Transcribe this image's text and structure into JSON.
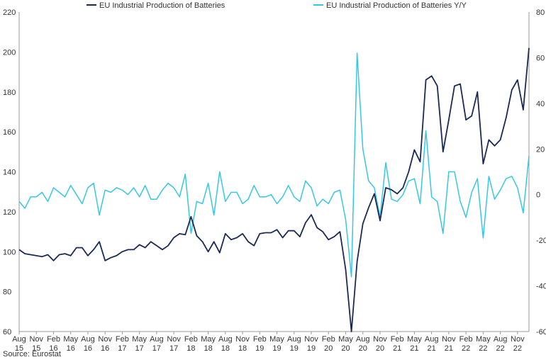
{
  "chart_data": {
    "type": "line",
    "source": "Source: Eurostat",
    "colors": {
      "index": "#1b2a55",
      "yoy": "#35c8e6",
      "axis": "#999999"
    },
    "left_axis": {
      "ylim": [
        60,
        220
      ],
      "ticks": [
        "60",
        "80",
        "100",
        "120",
        "140",
        "160",
        "180",
        "200",
        "220"
      ]
    },
    "right_axis": {
      "ylim": [
        -60,
        80
      ],
      "ticks": [
        "-60",
        "-40",
        "-20",
        "0",
        "20",
        "40",
        "60",
        "80"
      ]
    },
    "x_start": "2015-08",
    "x_ticks": [
      {
        "month": "Aug",
        "year": "15"
      },
      {
        "month": "Nov",
        "year": "15"
      },
      {
        "month": "Feb",
        "year": "16"
      },
      {
        "month": "May",
        "year": "16"
      },
      {
        "month": "Aug",
        "year": "16"
      },
      {
        "month": "Nov",
        "year": "16"
      },
      {
        "month": "Feb",
        "year": "17"
      },
      {
        "month": "May",
        "year": "17"
      },
      {
        "month": "Aug",
        "year": "17"
      },
      {
        "month": "Nov",
        "year": "17"
      },
      {
        "month": "Feb",
        "year": "18"
      },
      {
        "month": "May",
        "year": "18"
      },
      {
        "month": "Aug",
        "year": "18"
      },
      {
        "month": "Nov",
        "year": "18"
      },
      {
        "month": "Feb",
        "year": "19"
      },
      {
        "month": "May",
        "year": "19"
      },
      {
        "month": "Aug",
        "year": "19"
      },
      {
        "month": "Nov",
        "year": "19"
      },
      {
        "month": "Feb",
        "year": "20"
      },
      {
        "month": "May",
        "year": "20"
      },
      {
        "month": "Aug",
        "year": "20"
      },
      {
        "month": "Nov",
        "year": "20"
      },
      {
        "month": "Feb",
        "year": "21"
      },
      {
        "month": "May",
        "year": "21"
      },
      {
        "month": "Aug",
        "year": "21"
      },
      {
        "month": "Nov",
        "year": "21"
      },
      {
        "month": "Feb",
        "year": "22"
      },
      {
        "month": "May",
        "year": "22"
      },
      {
        "month": "Aug",
        "year": "22"
      },
      {
        "month": "Nov",
        "year": "22"
      }
    ],
    "series": [
      {
        "name": "EU Industrial Production of Batteries",
        "axis": "left",
        "values": [
          101,
          99,
          98.5,
          98,
          97.5,
          98.5,
          95.5,
          98.5,
          99,
          98,
          102,
          102,
          98,
          101,
          105,
          95.5,
          97,
          98,
          100,
          101,
          101,
          103.5,
          102,
          105,
          103,
          101,
          103,
          107,
          109,
          108.5,
          117.5,
          108,
          105,
          100,
          105,
          99.5,
          109,
          106,
          107,
          109,
          105,
          103,
          109,
          109.5,
          109.5,
          111,
          107,
          110.5,
          110.5,
          107.5,
          114.5,
          118.5,
          112,
          110,
          106,
          107.5,
          110,
          91,
          60,
          95,
          114,
          122,
          129,
          115.5,
          132,
          131,
          129,
          132,
          140,
          151,
          145,
          186,
          188,
          183,
          150,
          166,
          183,
          184,
          166,
          168,
          180,
          144,
          156,
          153,
          156,
          167,
          181,
          186,
          171,
          202
        ]
      },
      {
        "name": "EU Industrial Production of Batteries Y/Y",
        "axis": "right",
        "values": [
          -3,
          -6,
          -1,
          -1,
          1,
          -3,
          3,
          1,
          -1,
          4,
          0,
          -4,
          3,
          5,
          -9,
          2,
          1,
          3,
          2,
          0,
          3,
          -1,
          4,
          -2,
          -2,
          2,
          5,
          3,
          -1,
          9,
          -17,
          -3,
          -4,
          5,
          -9,
          10,
          -3,
          1,
          1,
          -4,
          -2,
          4,
          -1,
          -1,
          0,
          -4,
          -1,
          4,
          -1,
          -3,
          6,
          3,
          -5,
          -2,
          -4,
          1,
          2,
          -11,
          -36,
          62,
          20,
          6,
          3,
          -10,
          14,
          -2,
          -3,
          0,
          6,
          7,
          -4,
          28,
          -1,
          -3,
          -17,
          10,
          10,
          -3,
          -10,
          1,
          7,
          -19,
          8,
          -2,
          2,
          7,
          8,
          3,
          -8,
          17
        ]
      }
    ]
  }
}
